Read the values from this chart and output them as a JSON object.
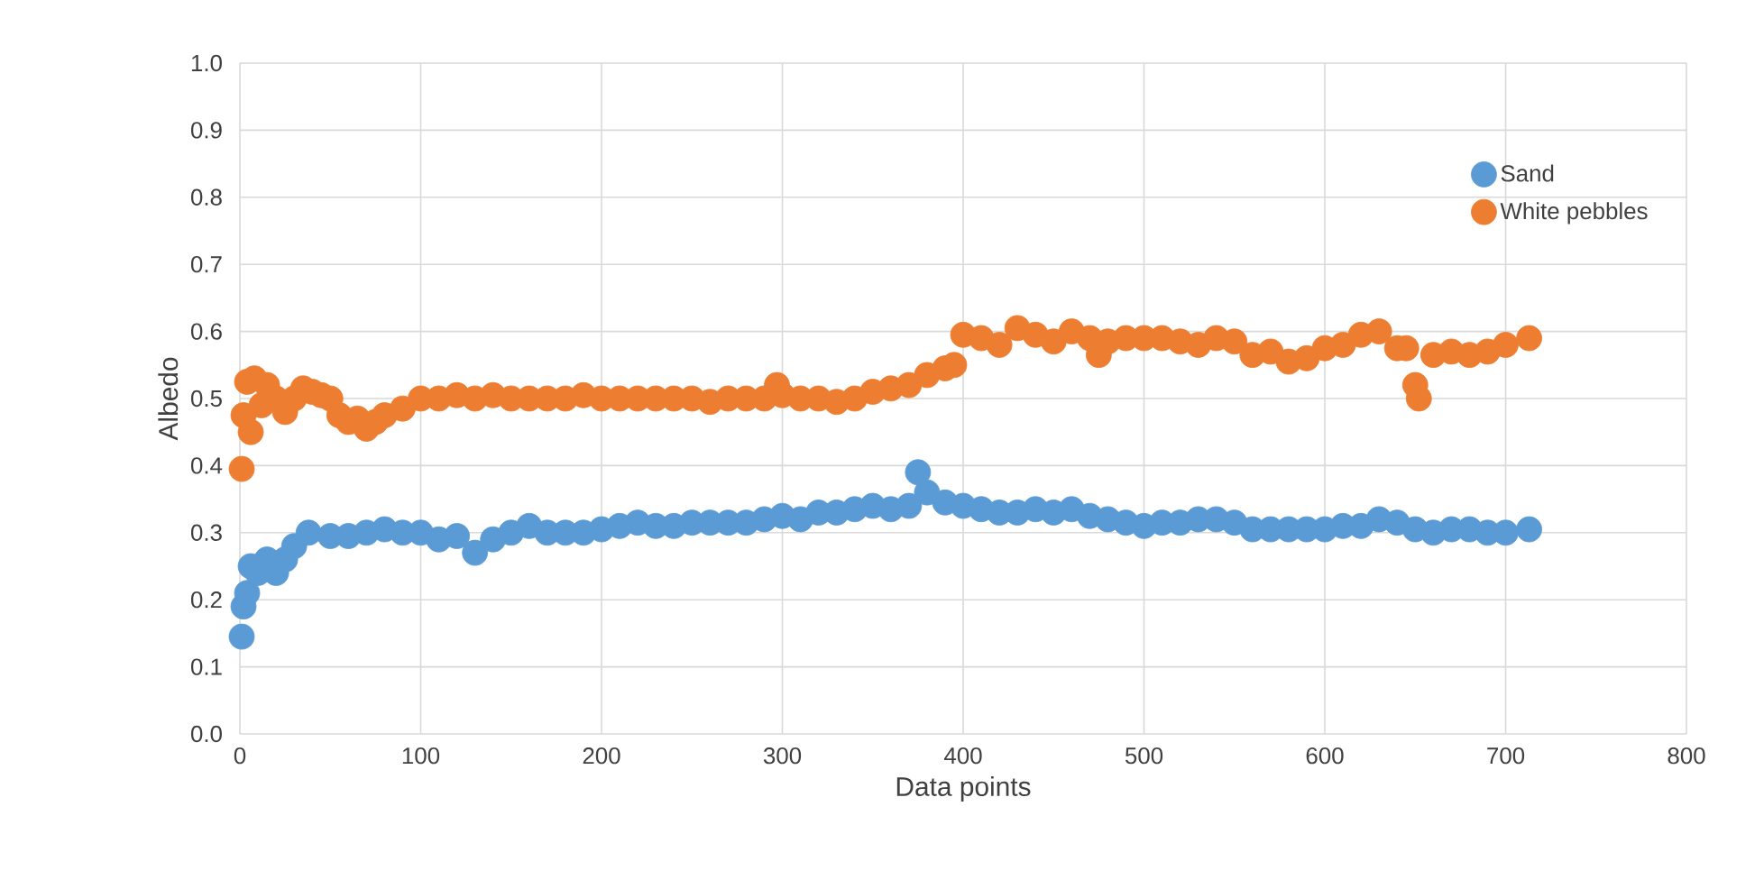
{
  "chart_data": {
    "type": "scatter",
    "xlabel": "Data points",
    "ylabel": "Albedo",
    "xlim": [
      0,
      800
    ],
    "ylim": [
      0,
      1
    ],
    "xticks": [
      0,
      100,
      200,
      300,
      400,
      500,
      600,
      700,
      800
    ],
    "yticks": [
      {
        "value": 0,
        "label": "0.0"
      },
      0.1,
      0.2,
      0.3,
      0.4,
      0.5,
      0.6,
      0.7,
      0.8,
      0.9,
      {
        "value": 1,
        "label": "1.0"
      }
    ],
    "grid": true,
    "legend": "top right",
    "marker": "circle",
    "series": [
      {
        "name": "Sand",
        "color": "#5b9bd5",
        "x": [
          1,
          2,
          4,
          6,
          10,
          15,
          20,
          25,
          30,
          38,
          50,
          60,
          70,
          80,
          90,
          100,
          110,
          120,
          130,
          140,
          150,
          160,
          170,
          180,
          190,
          200,
          210,
          220,
          230,
          240,
          250,
          260,
          270,
          280,
          290,
          300,
          310,
          320,
          330,
          340,
          350,
          360,
          370,
          375,
          380,
          390,
          400,
          410,
          420,
          430,
          440,
          450,
          460,
          470,
          480,
          490,
          500,
          510,
          520,
          530,
          540,
          550,
          560,
          570,
          580,
          590,
          600,
          610,
          620,
          630,
          640,
          650,
          660,
          670,
          680,
          690,
          700,
          713
        ],
        "values": [
          0.145,
          0.19,
          0.21,
          0.25,
          0.24,
          0.26,
          0.24,
          0.26,
          0.28,
          0.3,
          0.295,
          0.295,
          0.3,
          0.305,
          0.3,
          0.3,
          0.29,
          0.295,
          0.27,
          0.29,
          0.3,
          0.31,
          0.3,
          0.3,
          0.3,
          0.305,
          0.31,
          0.315,
          0.31,
          0.31,
          0.315,
          0.315,
          0.315,
          0.315,
          0.32,
          0.325,
          0.32,
          0.33,
          0.33,
          0.335,
          0.34,
          0.335,
          0.34,
          0.39,
          0.36,
          0.345,
          0.34,
          0.335,
          0.33,
          0.33,
          0.335,
          0.33,
          0.335,
          0.325,
          0.32,
          0.315,
          0.31,
          0.315,
          0.315,
          0.32,
          0.32,
          0.315,
          0.305,
          0.305,
          0.305,
          0.305,
          0.305,
          0.31,
          0.31,
          0.32,
          0.315,
          0.305,
          0.3,
          0.305,
          0.305,
          0.3,
          0.3,
          0.305
        ]
      },
      {
        "name": "White pebbles",
        "color": "#ed7d31",
        "x": [
          1,
          2,
          4,
          6,
          8,
          12,
          15,
          20,
          25,
          30,
          35,
          40,
          45,
          50,
          55,
          60,
          65,
          70,
          75,
          80,
          90,
          100,
          110,
          120,
          130,
          140,
          150,
          160,
          170,
          180,
          190,
          200,
          210,
          220,
          230,
          240,
          250,
          260,
          270,
          280,
          290,
          297,
          300,
          310,
          320,
          330,
          340,
          350,
          360,
          370,
          380,
          390,
          395,
          400,
          410,
          420,
          430,
          440,
          450,
          460,
          470,
          475,
          480,
          490,
          500,
          510,
          520,
          530,
          540,
          550,
          560,
          570,
          580,
          590,
          600,
          610,
          620,
          630,
          640,
          645,
          650,
          652,
          660,
          670,
          680,
          690,
          700,
          713
        ],
        "values": [
          0.395,
          0.475,
          0.525,
          0.45,
          0.53,
          0.49,
          0.52,
          0.5,
          0.48,
          0.5,
          0.515,
          0.51,
          0.505,
          0.5,
          0.475,
          0.465,
          0.47,
          0.455,
          0.465,
          0.475,
          0.485,
          0.5,
          0.5,
          0.505,
          0.5,
          0.505,
          0.5,
          0.5,
          0.5,
          0.5,
          0.505,
          0.5,
          0.5,
          0.5,
          0.5,
          0.5,
          0.5,
          0.495,
          0.5,
          0.5,
          0.5,
          0.52,
          0.505,
          0.5,
          0.5,
          0.495,
          0.5,
          0.51,
          0.515,
          0.52,
          0.535,
          0.545,
          0.55,
          0.595,
          0.59,
          0.58,
          0.605,
          0.595,
          0.585,
          0.6,
          0.59,
          0.565,
          0.585,
          0.59,
          0.59,
          0.59,
          0.585,
          0.58,
          0.59,
          0.585,
          0.565,
          0.57,
          0.555,
          0.56,
          0.575,
          0.58,
          0.595,
          0.6,
          0.575,
          0.575,
          0.52,
          0.5,
          0.565,
          0.57,
          0.565,
          0.57,
          0.58,
          0.59
        ]
      }
    ]
  }
}
